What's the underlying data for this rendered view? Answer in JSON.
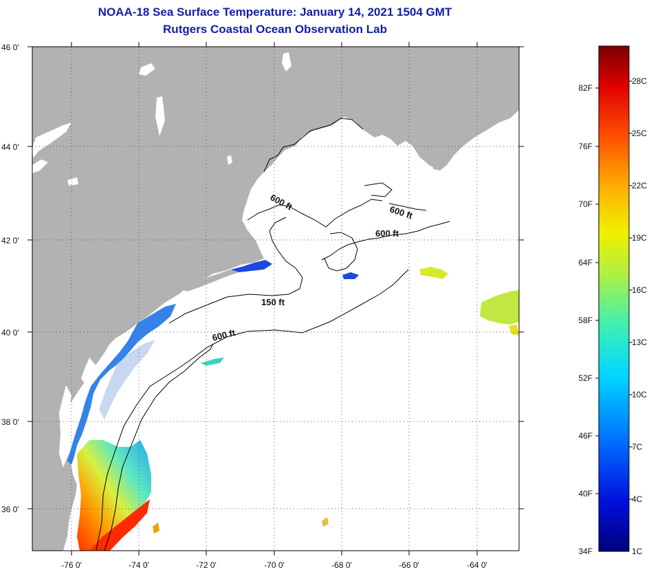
{
  "title": "NOAA-18 Sea Surface Temperature:  January 14, 2021 1504 GMT",
  "subtitle": "Rutgers Coastal Ocean Observation Lab",
  "map": {
    "lat_labels": [
      "46 0'",
      "44 0'",
      "42 0'",
      "40 0'",
      "38 0'",
      "36 0'"
    ],
    "lon_labels": [
      "-76 0'",
      "-74 0'",
      "-72 0'",
      "-70 0'",
      "-68 0'",
      "-66 0'",
      "-64 0'"
    ],
    "contour_labels": [
      "600 ft",
      "600 ft",
      "600 ft",
      "150 ft",
      "600 ft"
    ],
    "colors": {
      "land": "#b2b2b2",
      "ocean": "#ffffff",
      "grid": "#555555"
    }
  },
  "colorbar": {
    "fahrenheit": [
      "82F",
      "76F",
      "70F",
      "64F",
      "58F",
      "52F",
      "46F",
      "40F",
      "34F"
    ],
    "celsius": [
      "28C",
      "25C",
      "22C",
      "19C",
      "16C",
      "13C",
      "10C",
      "7C",
      "4C",
      "1C"
    ]
  }
}
